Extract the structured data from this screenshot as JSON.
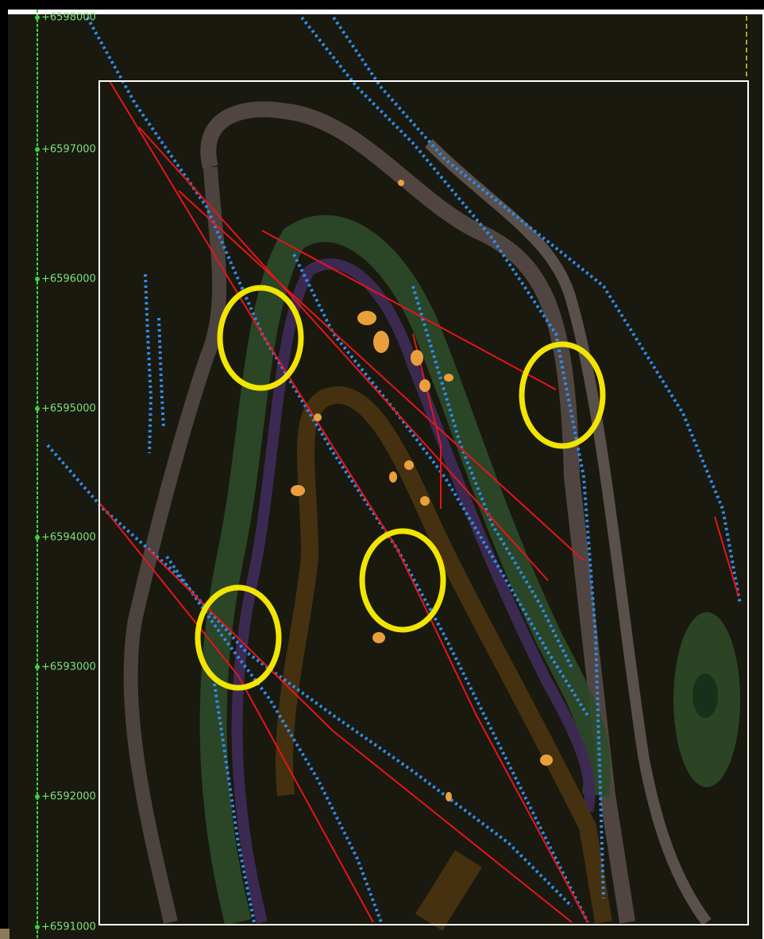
{
  "y_axis": {
    "labels": [
      "+6598000",
      "+6597000",
      "+6596000",
      "+6595000",
      "+6594000",
      "+6593000",
      "+6592000",
      "+6591000"
    ]
  }
}
